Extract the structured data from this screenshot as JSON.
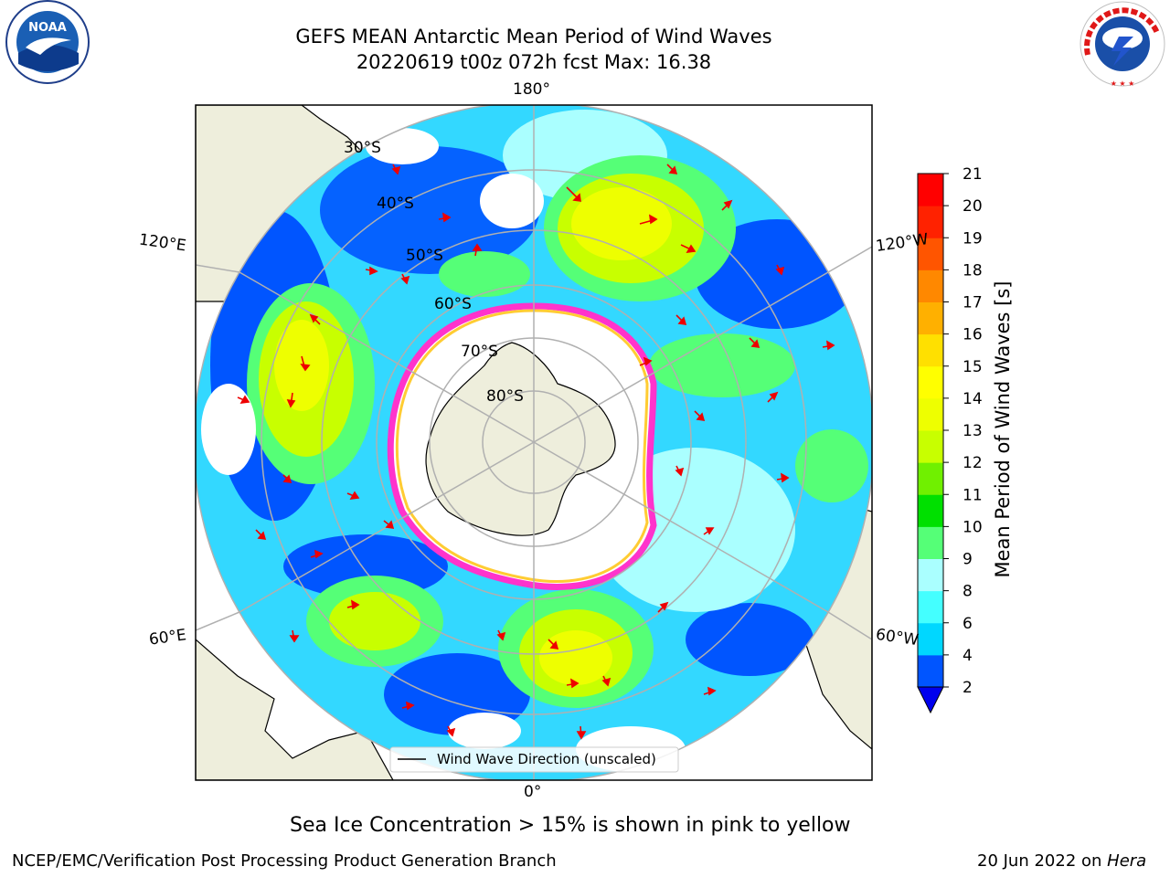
{
  "header": {
    "title_line1": "GEFS MEAN Antarctic Mean Period of Wind Waves",
    "title_line2": "20220619 t00z 072h fcst   Max: 16.38"
  },
  "logos": {
    "left_text": "NOAA",
    "right_text": "NATIONAL WEATHER SERVICE"
  },
  "map": {
    "meridian_labels": {
      "top": "180°",
      "upper_left": "120°E",
      "upper_right": "120°W",
      "lower_left": "60°E",
      "lower_right": "60°W",
      "bottom": "0°"
    },
    "latitude_labels": [
      "30°S",
      "40°S",
      "50°S",
      "60°S",
      "70°S",
      "80°S"
    ],
    "legend_label": "Wind Wave Direction (unscaled)"
  },
  "colorbar": {
    "label": "Mean Period of Wind Waves [s]",
    "ticks": [
      "2",
      "4",
      "6",
      "8",
      "9",
      "10",
      "11",
      "12",
      "13",
      "14",
      "15",
      "16",
      "17",
      "18",
      "19",
      "20",
      "21"
    ],
    "colors": [
      "#0055ff",
      "#00d7ff",
      "#44ffff",
      "#aaffff",
      "#55ff77",
      "#00e000",
      "#70f000",
      "#c8ff00",
      "#eeff00",
      "#ffff00",
      "#ffe000",
      "#ffb000",
      "#ff8800",
      "#ff5500",
      "#ff2200",
      "#ff0000"
    ],
    "under_color": "#0000ee"
  },
  "notes": {
    "sea_ice": "Sea Ice Concentration > 15% is shown in pink to yellow"
  },
  "footer": {
    "left": "NCEP/EMC/Verification Post Processing Product Generation Branch",
    "right_date": "20 Jun 2022 on ",
    "right_host": "Hera"
  }
}
